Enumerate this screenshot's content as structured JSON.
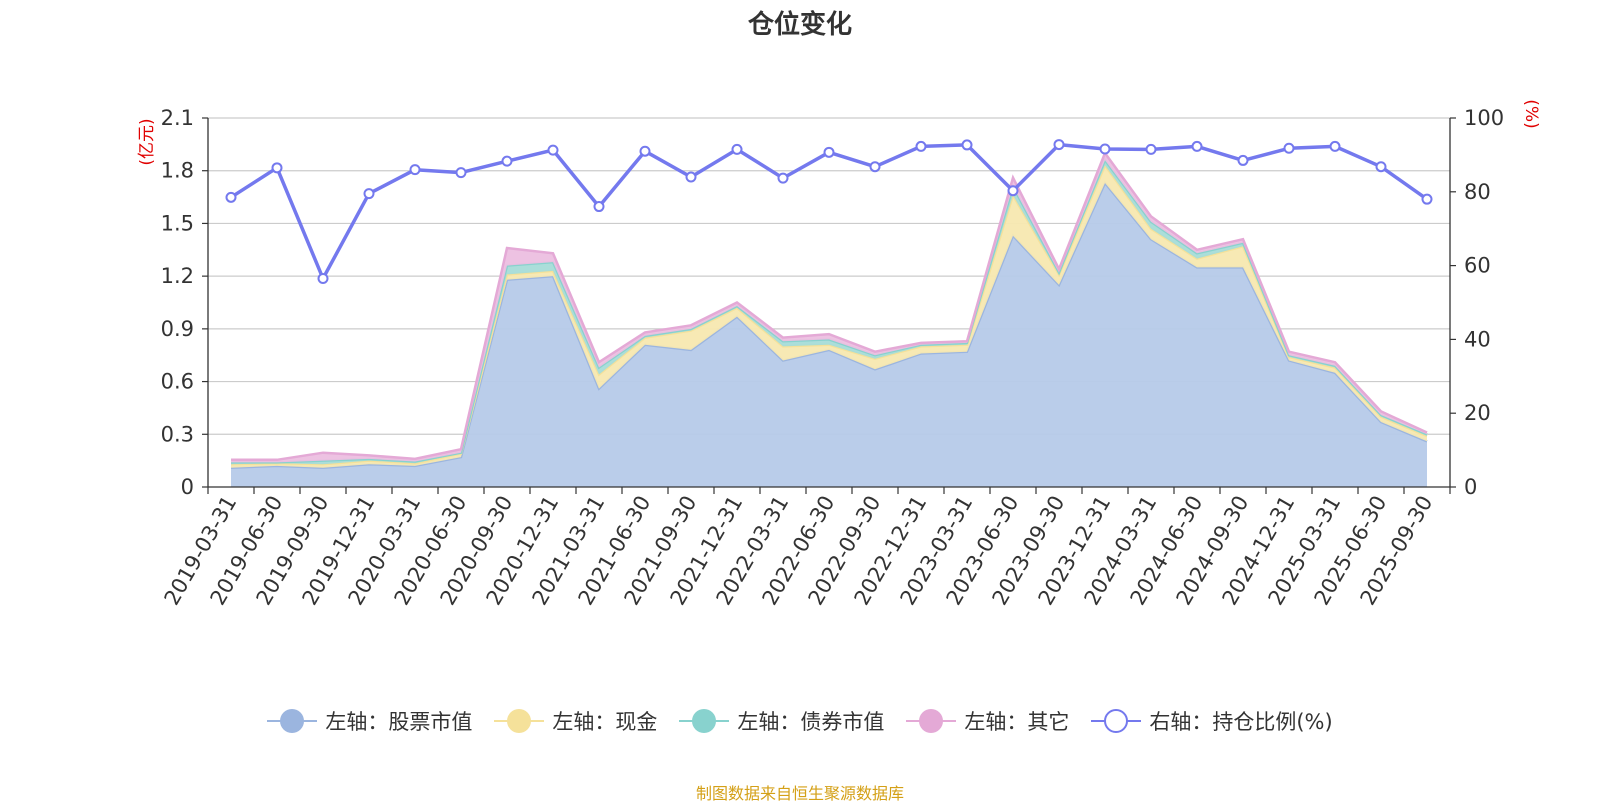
{
  "chart_data": {
    "type": "area",
    "title": "仓位变化",
    "left_axis_unit": "(亿元)",
    "right_axis_unit": "(%)",
    "left_ylim": [
      0,
      2.1
    ],
    "left_ticks": [
      "0",
      "0.3",
      "0.6",
      "0.9",
      "1.2",
      "1.5",
      "1.8",
      "2.1"
    ],
    "right_ylim": [
      0,
      100
    ],
    "right_ticks": [
      "0",
      "20",
      "40",
      "60",
      "80",
      "100"
    ],
    "grid": true,
    "legend_position": "bottom",
    "categories": [
      "2019-03-31",
      "2019-06-30",
      "2019-09-30",
      "2019-12-31",
      "2020-03-31",
      "2020-06-30",
      "2020-09-30",
      "2020-12-31",
      "2021-03-31",
      "2021-06-30",
      "2021-09-30",
      "2021-12-31",
      "2022-03-31",
      "2022-06-30",
      "2022-09-30",
      "2022-12-31",
      "2023-03-31",
      "2023-06-30",
      "2023-09-30",
      "2023-12-31",
      "2024-03-31",
      "2024-06-30",
      "2024-09-30",
      "2024-12-31",
      "2025-03-31",
      "2025-06-30",
      "2025-09-30"
    ],
    "stacked_series": [
      {
        "name": "左轴：股票市值",
        "axis": "left",
        "color": "#9bb5df",
        "fill": "#b6cae9",
        "values": [
          0.11,
          0.12,
          0.11,
          0.13,
          0.12,
          0.17,
          1.18,
          1.2,
          0.56,
          0.81,
          0.78,
          0.97,
          0.72,
          0.78,
          0.67,
          0.76,
          0.77,
          1.43,
          1.15,
          1.73,
          1.41,
          1.25,
          1.25,
          0.72,
          0.65,
          0.37,
          0.26
        ]
      },
      {
        "name": "左轴：现金",
        "axis": "left",
        "color": "#f5e19a",
        "fill": "#f7e8b0",
        "values": [
          0.02,
          0.015,
          0.02,
          0.02,
          0.015,
          0.02,
          0.03,
          0.03,
          0.08,
          0.04,
          0.11,
          0.05,
          0.08,
          0.03,
          0.06,
          0.04,
          0.04,
          0.23,
          0.06,
          0.1,
          0.06,
          0.05,
          0.12,
          0.02,
          0.03,
          0.03,
          0.03
        ]
      },
      {
        "name": "左轴：债券市值",
        "axis": "left",
        "color": "#88d2ce",
        "fill": "#a6dcd8",
        "values": [
          0.01,
          0.005,
          0.02,
          0.01,
          0.01,
          0.005,
          0.05,
          0.05,
          0.04,
          0.01,
          0.01,
          0.01,
          0.03,
          0.03,
          0.02,
          0.01,
          0.01,
          0.05,
          0.01,
          0.03,
          0.04,
          0.03,
          0.02,
          0.01,
          0.01,
          0.01,
          0.01
        ]
      },
      {
        "name": "左轴：其它",
        "axis": "left",
        "color": "#e4a9d6",
        "fill": "#ecbfe0",
        "values": [
          0.015,
          0.015,
          0.045,
          0.02,
          0.015,
          0.02,
          0.1,
          0.05,
          0.03,
          0.02,
          0.02,
          0.02,
          0.02,
          0.03,
          0.02,
          0.01,
          0.01,
          0.05,
          0.02,
          0.04,
          0.03,
          0.02,
          0.02,
          0.02,
          0.02,
          0.02,
          0.01
        ]
      }
    ],
    "line_series": {
      "name": "右轴：持仓比例(%)",
      "axis": "right",
      "color": "#7479ee",
      "values": [
        78.5,
        86.5,
        56.5,
        79.5,
        86,
        85.2,
        88.3,
        91.3,
        76,
        91,
        84,
        91.5,
        83.7,
        90.7,
        86.8,
        92.3,
        92.7,
        80.3,
        92.8,
        91.6,
        91.5,
        92.3,
        88.5,
        91.8,
        92.3,
        86.8,
        78
      ]
    }
  },
  "source_note": "制图数据来自恒生聚源数据库"
}
